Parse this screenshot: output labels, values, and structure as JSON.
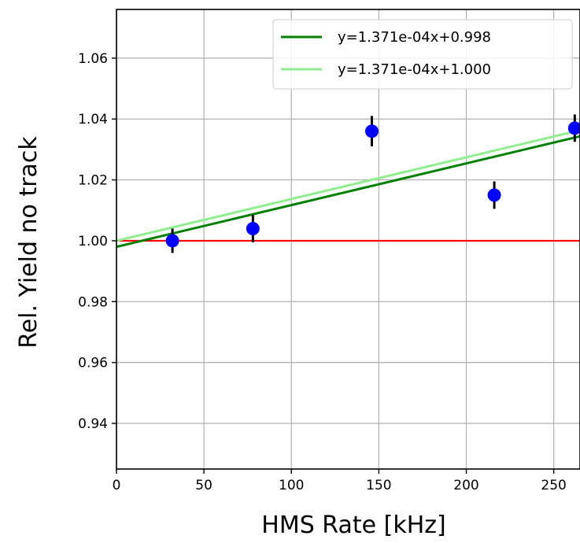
{
  "chart_data": {
    "type": "scatter",
    "title": "",
    "xlabel": "HMS Rate [kHz]",
    "ylabel": "Rel. Yield no track",
    "xlim": [
      0,
      265
    ],
    "ylim": [
      0.925,
      1.076
    ],
    "xticks": [
      0,
      50,
      100,
      150,
      200,
      250
    ],
    "yticks": [
      0.94,
      0.96,
      0.98,
      1.0,
      1.02,
      1.04,
      1.06
    ],
    "xtick_labels": [
      "0",
      "50",
      "100",
      "150",
      "200",
      "250"
    ],
    "ytick_labels": [
      "0.94",
      "0.96",
      "0.98",
      "1.00",
      "1.02",
      "1.04",
      "1.06"
    ],
    "grid": true,
    "legend_position": "top-right",
    "points": {
      "color": "#0000ff",
      "errorbar_color": "#000000",
      "x": [
        32,
        78,
        146,
        216,
        262
      ],
      "y": [
        1.0,
        1.004,
        1.036,
        1.015,
        1.037
      ],
      "yerr": [
        0.004,
        0.0045,
        0.005,
        0.0045,
        0.0045
      ]
    },
    "reference_line": {
      "y": 1.0,
      "color": "#ff0000"
    },
    "fit_lines": [
      {
        "name": "y=1.371e-04x+0.998",
        "slope": 0.0001371,
        "intercept": 0.998,
        "color": "#008000"
      },
      {
        "name": "y=1.371e-04x+1.000",
        "slope": 0.0001371,
        "intercept": 1.0,
        "color": "#90ee90"
      }
    ]
  }
}
